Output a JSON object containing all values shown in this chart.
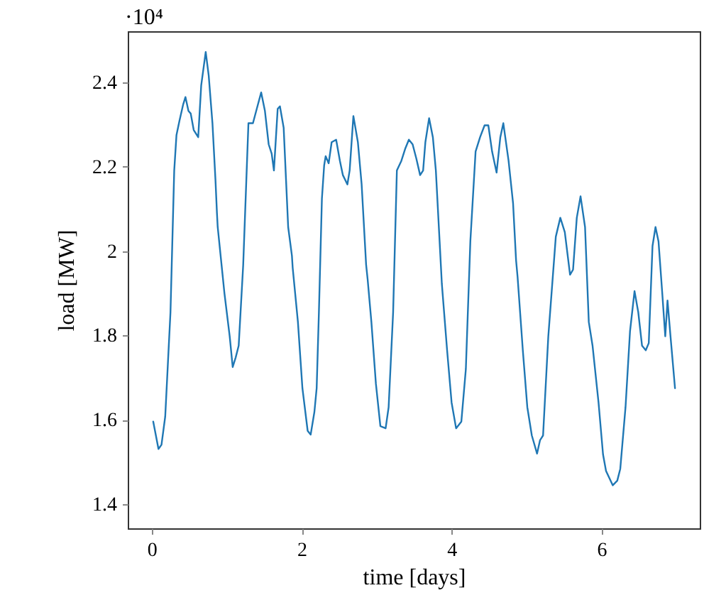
{
  "chart_data": {
    "type": "line",
    "xlabel": "time [days]",
    "ylabel": "load [MW]",
    "annotations": [
      "·10⁴"
    ],
    "xlim": [
      -0.32,
      7.31
    ],
    "xticks": [
      0,
      2,
      4,
      6
    ],
    "ylim": [
      1.343,
      2.521
    ],
    "yticks": [
      1.4,
      1.6,
      1.8,
      2,
      2.2,
      2.4
    ],
    "grid": false,
    "legend": false,
    "marker": "none",
    "line_style": "solid",
    "series": [
      {
        "color": "#1f77b4",
        "x": [
          0.02,
          0.09,
          0.13,
          0.18,
          0.25,
          0.3,
          0.33,
          0.37,
          0.42,
          0.45,
          0.49,
          0.52,
          0.56,
          0.62,
          0.66,
          0.72,
          0.76,
          0.81,
          0.85,
          0.87,
          0.88,
          0.97,
          1.04,
          1.08,
          1.12,
          1.16,
          1.22,
          1.29,
          1.35,
          1.41,
          1.46,
          1.51,
          1.56,
          1.6,
          1.63,
          1.68,
          1.71,
          1.76,
          1.82,
          1.87,
          1.88,
          1.95,
          2.01,
          2.08,
          2.12,
          2.17,
          2.2,
          2.23,
          2.27,
          2.3,
          2.32,
          2.36,
          2.4,
          2.46,
          2.51,
          2.55,
          2.61,
          2.64,
          2.69,
          2.75,
          2.8,
          2.86,
          2.88,
          2.93,
          2.99,
          3.05,
          3.12,
          3.16,
          3.22,
          3.27,
          3.33,
          3.38,
          3.43,
          3.48,
          3.53,
          3.58,
          3.62,
          3.65,
          3.7,
          3.75,
          3.79,
          3.84,
          3.87,
          3.94,
          4.0,
          4.06,
          4.13,
          4.19,
          4.25,
          4.32,
          4.38,
          4.44,
          4.49,
          4.54,
          4.6,
          4.65,
          4.69,
          4.76,
          4.82,
          4.86,
          4.88,
          4.95,
          5.01,
          5.07,
          5.14,
          5.18,
          5.22,
          5.29,
          5.39,
          5.45,
          5.51,
          5.58,
          5.62,
          5.67,
          5.72,
          5.78,
          5.83,
          5.88,
          5.96,
          6.02,
          6.06,
          6.15,
          6.21,
          6.25,
          6.32,
          6.38,
          6.44,
          6.49,
          6.54,
          6.59,
          6.63,
          6.68,
          6.72,
          6.76,
          6.81,
          6.85,
          6.88,
          6.92,
          6.98
        ],
        "values": [
          1.596,
          1.531,
          1.541,
          1.608,
          1.855,
          2.191,
          2.275,
          2.309,
          2.348,
          2.365,
          2.332,
          2.326,
          2.287,
          2.27,
          2.393,
          2.472,
          2.416,
          2.303,
          2.169,
          2.09,
          2.057,
          1.9,
          1.798,
          1.725,
          1.748,
          1.776,
          1.967,
          2.303,
          2.303,
          2.343,
          2.376,
          2.332,
          2.253,
          2.231,
          2.191,
          2.337,
          2.343,
          2.292,
          2.057,
          1.989,
          1.961,
          1.832,
          1.675,
          1.574,
          1.565,
          1.619,
          1.675,
          1.855,
          2.124,
          2.203,
          2.225,
          2.208,
          2.258,
          2.264,
          2.214,
          2.18,
          2.158,
          2.191,
          2.32,
          2.258,
          2.158,
          1.967,
          1.933,
          1.832,
          1.686,
          1.585,
          1.58,
          1.63,
          1.855,
          2.191,
          2.214,
          2.242,
          2.264,
          2.253,
          2.219,
          2.18,
          2.191,
          2.258,
          2.315,
          2.27,
          2.191,
          2.023,
          1.922,
          1.765,
          1.641,
          1.58,
          1.596,
          1.72,
          2.023,
          2.236,
          2.27,
          2.298,
          2.298,
          2.236,
          2.186,
          2.27,
          2.303,
          2.214,
          2.113,
          1.978,
          1.939,
          1.765,
          1.63,
          1.563,
          1.52,
          1.552,
          1.563,
          1.798,
          2.034,
          2.079,
          2.045,
          1.944,
          1.956,
          2.079,
          2.13,
          2.057,
          1.832,
          1.776,
          1.641,
          1.518,
          1.479,
          1.445,
          1.456,
          1.484,
          1.63,
          1.81,
          1.905,
          1.855,
          1.776,
          1.765,
          1.782,
          2.012,
          2.057,
          2.023,
          1.9,
          1.798,
          1.883,
          1.798,
          1.675
        ]
      }
    ]
  }
}
